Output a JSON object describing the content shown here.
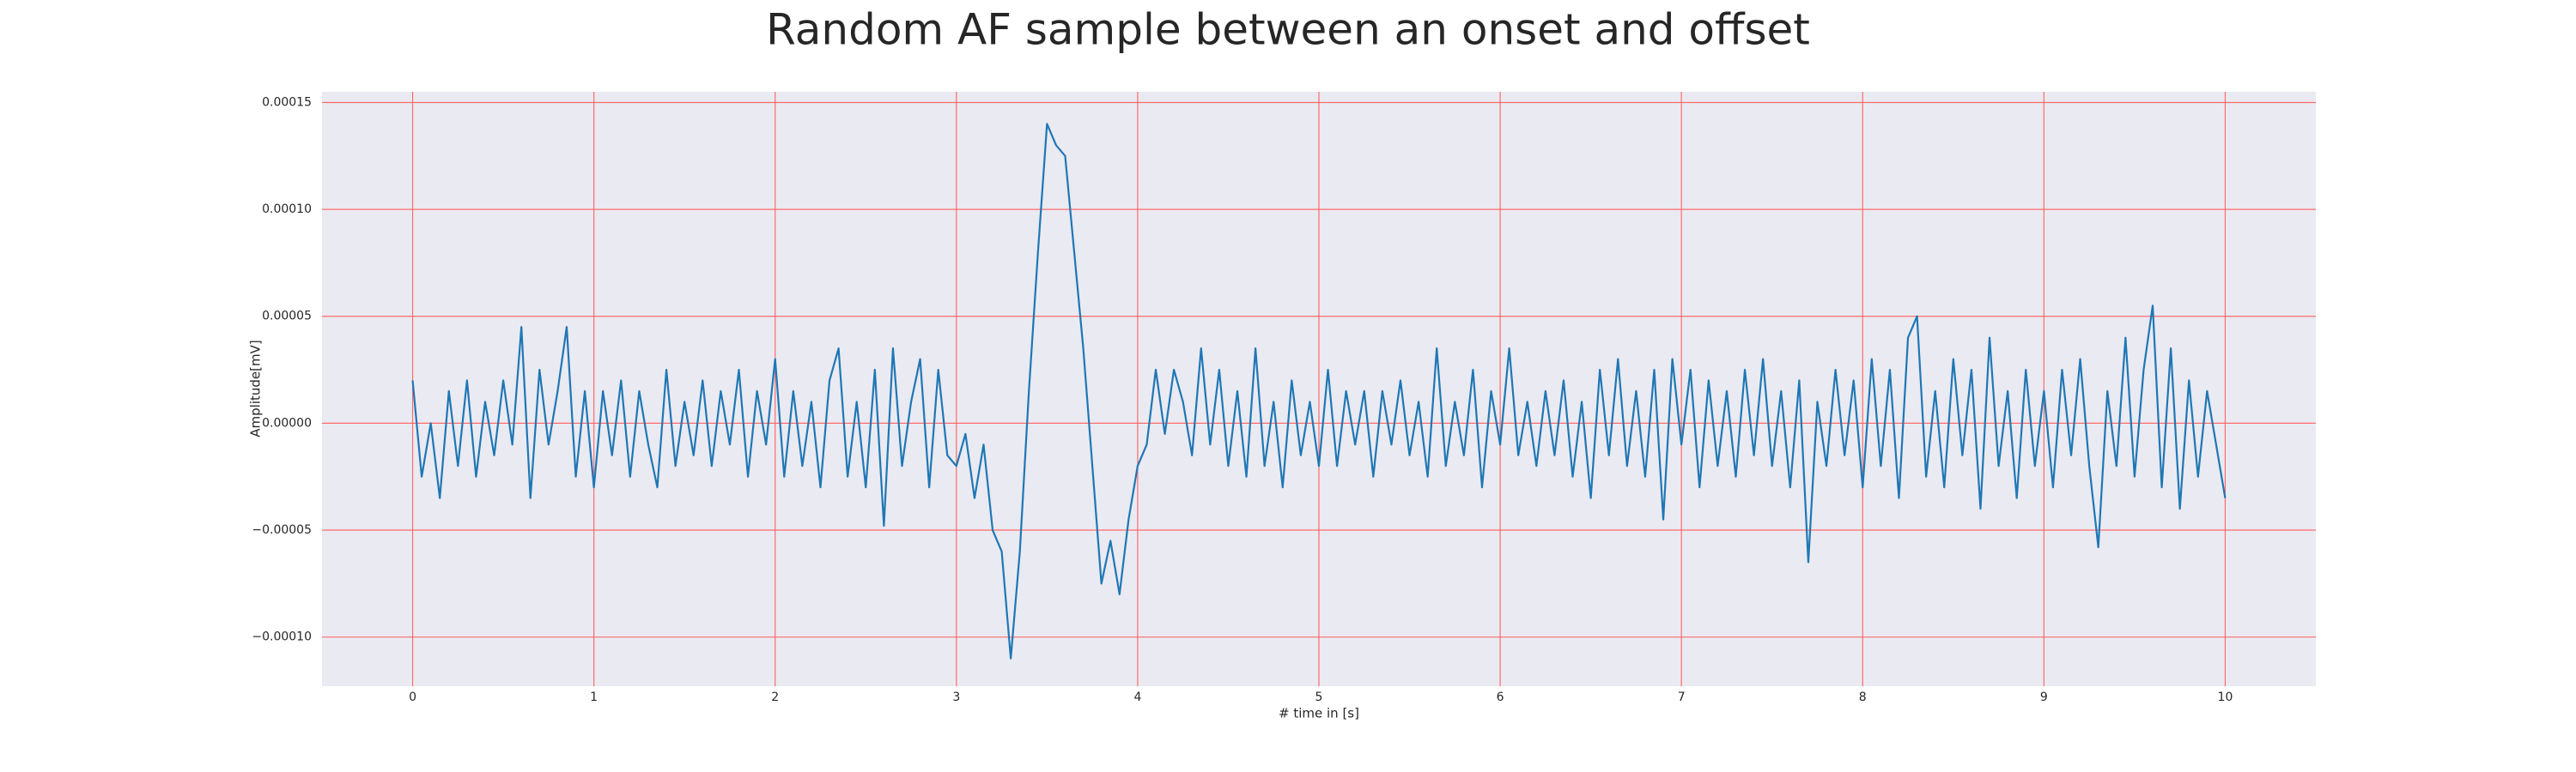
{
  "chart_data": {
    "type": "line",
    "title": "Random AF sample between an onset and offset",
    "xlabel": "# time in [s]",
    "ylabel": "Amplitude[mV]",
    "background": "#eaeaf2",
    "grid": true,
    "grid_color": "#ff6b6b",
    "xlim": [
      -0.5,
      10.5
    ],
    "xticks": [
      0,
      1,
      2,
      3,
      4,
      5,
      6,
      7,
      8,
      9,
      10
    ],
    "ylim": [
      -0.000123,
      0.000155
    ],
    "yticks": [
      {
        "value": -0.0001,
        "label": "−0.00010"
      },
      {
        "value": -5e-05,
        "label": "−0.00005"
      },
      {
        "value": 0,
        "label": "0.00000"
      },
      {
        "value": 5e-05,
        "label": "0.00005"
      },
      {
        "value": 0.0001,
        "label": "0.00010"
      },
      {
        "value": 0.00015,
        "label": "0.00015"
      }
    ],
    "x": [
      0,
      0.05,
      0.1,
      0.15,
      0.2,
      0.25,
      0.3,
      0.35,
      0.4,
      0.45,
      0.5,
      0.55,
      0.6,
      0.65,
      0.7,
      0.75,
      0.8,
      0.85,
      0.9,
      0.95,
      1,
      1.05,
      1.1,
      1.15,
      1.2,
      1.25,
      1.3,
      1.35,
      1.4,
      1.45,
      1.5,
      1.55,
      1.6,
      1.65,
      1.7,
      1.75,
      1.8,
      1.85,
      1.9,
      1.95,
      2,
      2.05,
      2.1,
      2.15,
      2.2,
      2.25,
      2.3,
      2.35,
      2.4,
      2.45,
      2.5,
      2.55,
      2.6,
      2.65,
      2.7,
      2.75,
      2.8,
      2.85,
      2.9,
      2.95,
      3,
      3.05,
      3.1,
      3.15,
      3.2,
      3.25,
      3.3,
      3.35,
      3.4,
      3.45,
      3.5,
      3.55,
      3.6,
      3.65,
      3.7,
      3.75,
      3.8,
      3.85,
      3.9,
      3.95,
      4,
      4.05,
      4.1,
      4.15,
      4.2,
      4.25,
      4.3,
      4.35,
      4.4,
      4.45,
      4.5,
      4.55,
      4.6,
      4.65,
      4.7,
      4.75,
      4.8,
      4.85,
      4.9,
      4.95,
      5,
      5.05,
      5.1,
      5.15,
      5.2,
      5.25,
      5.3,
      5.35,
      5.4,
      5.45,
      5.5,
      5.55,
      5.6,
      5.65,
      5.7,
      5.75,
      5.8,
      5.85,
      5.9,
      5.95,
      6,
      6.05,
      6.1,
      6.15,
      6.2,
      6.25,
      6.3,
      6.35,
      6.4,
      6.45,
      6.5,
      6.55,
      6.6,
      6.65,
      6.7,
      6.75,
      6.8,
      6.85,
      6.9,
      6.95,
      7,
      7.05,
      7.1,
      7.15,
      7.2,
      7.25,
      7.3,
      7.35,
      7.4,
      7.45,
      7.5,
      7.55,
      7.6,
      7.65,
      7.7,
      7.75,
      7.8,
      7.85,
      7.9,
      7.95,
      8,
      8.05,
      8.1,
      8.15,
      8.2,
      8.25,
      8.3,
      8.35,
      8.4,
      8.45,
      8.5,
      8.55,
      8.6,
      8.65,
      8.7,
      8.75,
      8.8,
      8.85,
      8.9,
      8.95,
      9,
      9.05,
      9.1,
      9.15,
      9.2,
      9.25,
      9.3,
      9.35,
      9.4,
      9.45,
      9.5,
      9.55,
      9.6,
      9.65,
      9.7,
      9.75,
      9.8,
      9.85,
      9.9,
      9.95,
      10
    ],
    "series": [
      {
        "color": "#1f77b4",
        "values": [
          2e-05,
          -2.5e-05,
          0,
          -3.5e-05,
          1.5e-05,
          -2e-05,
          2e-05,
          -2.5e-05,
          1e-05,
          -1.5e-05,
          2e-05,
          -1e-05,
          4.5e-05,
          -3.5e-05,
          2.5e-05,
          -1e-05,
          1.5e-05,
          4.5e-05,
          -2.5e-05,
          1.5e-05,
          -3e-05,
          1.5e-05,
          -1.5e-05,
          2e-05,
          -2.5e-05,
          1.5e-05,
          -1e-05,
          -3e-05,
          2.5e-05,
          -2e-05,
          1e-05,
          -1.5e-05,
          2e-05,
          -2e-05,
          1.5e-05,
          -1e-05,
          2.5e-05,
          -2.5e-05,
          1.5e-05,
          -1e-05,
          3e-05,
          -2.5e-05,
          1.5e-05,
          -2e-05,
          1e-05,
          -3e-05,
          2e-05,
          3.5e-05,
          -2.5e-05,
          1e-05,
          -3e-05,
          2.5e-05,
          -4.8e-05,
          3.5e-05,
          -2e-05,
          1e-05,
          3e-05,
          -3e-05,
          2.5e-05,
          -1.5e-05,
          -2e-05,
          -5e-06,
          -3.5e-05,
          -1e-05,
          -5e-05,
          -6e-05,
          -0.00011,
          -6e-05,
          1.5e-05,
          8e-05,
          0.00014,
          0.00013,
          0.000125,
          8e-05,
          3.5e-05,
          -2e-05,
          -7.5e-05,
          -5.5e-05,
          -8e-05,
          -4.5e-05,
          -2e-05,
          -1e-05,
          2.5e-05,
          -5e-06,
          2.5e-05,
          1e-05,
          -1.5e-05,
          3.5e-05,
          -1e-05,
          2.5e-05,
          -2e-05,
          1.5e-05,
          -2.5e-05,
          3.5e-05,
          -2e-05,
          1e-05,
          -3e-05,
          2e-05,
          -1.5e-05,
          1e-05,
          -2e-05,
          2.5e-05,
          -2e-05,
          1.5e-05,
          -1e-05,
          1.5e-05,
          -2.5e-05,
          1.5e-05,
          -1e-05,
          2e-05,
          -1.5e-05,
          1e-05,
          -2.5e-05,
          3.5e-05,
          -2e-05,
          1e-05,
          -1.5e-05,
          2.5e-05,
          -3e-05,
          1.5e-05,
          -1e-05,
          3.5e-05,
          -1.5e-05,
          1e-05,
          -2e-05,
          1.5e-05,
          -1.5e-05,
          2e-05,
          -2.5e-05,
          1e-05,
          -3.5e-05,
          2.5e-05,
          -1.5e-05,
          3e-05,
          -2e-05,
          1.5e-05,
          -2.5e-05,
          2.5e-05,
          -4.5e-05,
          3e-05,
          -1e-05,
          2.5e-05,
          -3e-05,
          2e-05,
          -2e-05,
          1.5e-05,
          -2.5e-05,
          2.5e-05,
          -1.5e-05,
          3e-05,
          -2e-05,
          1.5e-05,
          -3e-05,
          2e-05,
          -6.5e-05,
          1e-05,
          -2e-05,
          2.5e-05,
          -1.5e-05,
          2e-05,
          -3e-05,
          3e-05,
          -2e-05,
          2.5e-05,
          -3.5e-05,
          4e-05,
          5e-05,
          -2.5e-05,
          1.5e-05,
          -3e-05,
          3e-05,
          -1.5e-05,
          2.5e-05,
          -4e-05,
          4e-05,
          -2e-05,
          1.5e-05,
          -3.5e-05,
          2.5e-05,
          -2e-05,
          1.5e-05,
          -3e-05,
          2.5e-05,
          -1.5e-05,
          3e-05,
          -2e-05,
          -5.8e-05,
          1.5e-05,
          -2e-05,
          4e-05,
          -2.5e-05,
          2.5e-05,
          5.5e-05,
          -3e-05,
          3.5e-05,
          -4e-05,
          2e-05,
          -2.5e-05,
          1.5e-05,
          -1e-05,
          -3.5e-05
        ]
      }
    ]
  }
}
